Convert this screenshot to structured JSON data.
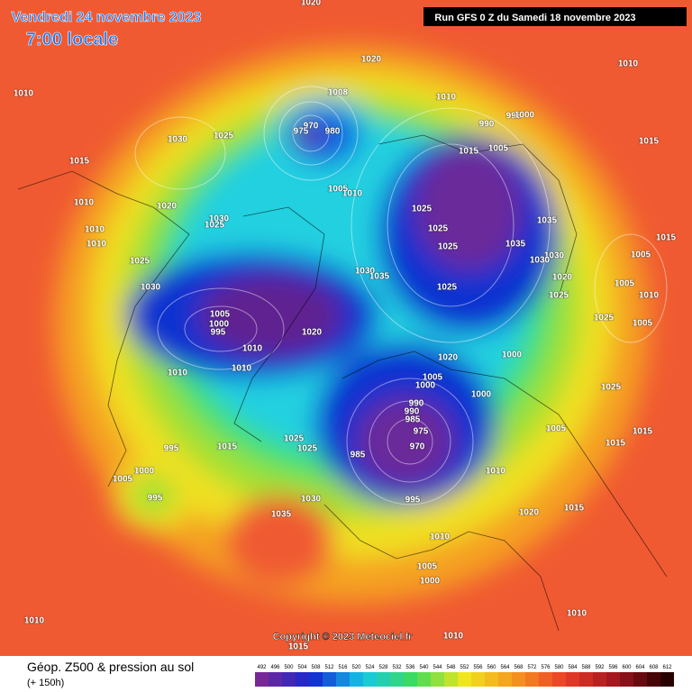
{
  "header": {
    "date": "Vendredi 24 novembre 2023",
    "time": "7:00 locale",
    "run": "Run GFS 0 Z du Samedi 18 novembre 2023"
  },
  "copyright": "Copyright © 2023 Meteociel.fr",
  "footer": {
    "title": "Géop. Z500 & pression au sol",
    "lead": "(+ 150h)"
  },
  "scale": [
    492,
    496,
    500,
    504,
    508,
    512,
    516,
    520,
    524,
    528,
    532,
    536,
    540,
    544,
    548,
    552,
    556,
    560,
    564,
    568,
    572,
    576,
    580,
    584,
    588,
    592,
    596,
    600,
    604,
    608,
    612
  ],
  "isobar_labels": [
    1020,
    1020,
    1010,
    1010,
    1030,
    1025,
    1015,
    1008,
    970,
    975,
    980,
    1010,
    990,
    995,
    1000,
    1015,
    1005,
    1015,
    1005,
    1010,
    1020,
    1030,
    1025,
    1010,
    1010,
    1010,
    1025,
    1030,
    1025,
    1025,
    1025,
    1035,
    1035,
    1030,
    1030,
    1020,
    1025,
    1015,
    1005,
    1005,
    1010,
    1005,
    1025,
    1030,
    1035,
    1025,
    1005,
    1000,
    995,
    1020,
    1010,
    1000,
    1020,
    1010,
    1010,
    1005,
    1000,
    1000,
    1025,
    990,
    990,
    985,
    975,
    970,
    985,
    1005,
    1015,
    1015,
    995,
    1015,
    1025,
    1025,
    1010,
    1000,
    1005,
    995,
    995,
    1030,
    1035,
    1020,
    1015,
    1010,
    1005,
    1000,
    1010,
    1010,
    1010,
    1015
  ]
}
